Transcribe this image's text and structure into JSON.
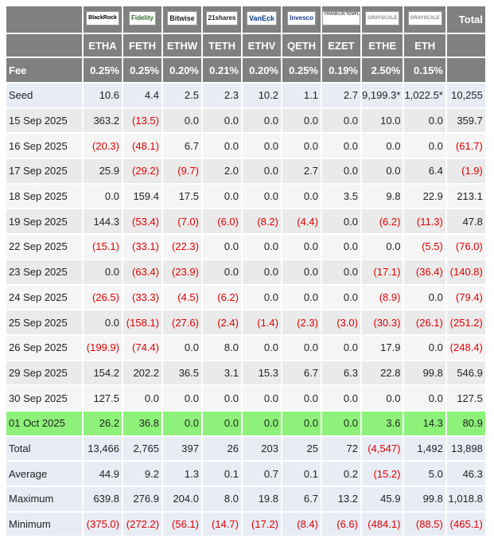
{
  "header": {
    "total_label": "Total",
    "logos": [
      {
        "text": "BlackRock",
        "icon": "blackrock-logo",
        "cls": "blackrock"
      },
      {
        "text": "Fidelity",
        "icon": "fidelity-logo",
        "cls": "fidelity"
      },
      {
        "text": "Bitwise",
        "icon": "bitwise-logo",
        "cls": "bitwise"
      },
      {
        "text": "21shares",
        "icon": "21shares-logo",
        "cls": "shares21"
      },
      {
        "text": "VanEck",
        "icon": "vaneck-logo",
        "cls": "vaneck"
      },
      {
        "text": "Invesco",
        "icon": "invesco-logo",
        "cls": "invesco"
      },
      {
        "text": "FRANKLIN TEMPLETON",
        "icon": "franklin-templeton-logo",
        "cls": "franklin"
      },
      {
        "text": "GRAYSCALE",
        "icon": "grayscale-logo",
        "cls": "grayscale"
      },
      {
        "text": "GRAYSCALE",
        "icon": "grayscale-logo",
        "cls": "grayscale"
      }
    ],
    "tickers": [
      "ETHA",
      "FETH",
      "ETHW",
      "TETH",
      "ETHV",
      "QETH",
      "EZET",
      "ETHE",
      "ETH"
    ],
    "fee_label": "Fee",
    "fees": [
      "0.25%",
      "0.25%",
      "0.20%",
      "0.21%",
      "0.20%",
      "0.25%",
      "0.19%",
      "2.50%",
      "0.15%"
    ]
  },
  "rows": [
    {
      "label": "Seed",
      "kind": "seed",
      "values": [
        "10.6",
        "4.4",
        "2.5",
        "2.3",
        "10.2",
        "1.1",
        "2.7",
        "9,199.3*",
        "1,022.5*",
        "10,255"
      ]
    },
    {
      "label": "15 Sep 2025",
      "kind": "data",
      "values": [
        "363.2",
        "(13.5)",
        "0.0",
        "0.0",
        "0.0",
        "0.0",
        "0.0",
        "10.0",
        "0.0",
        "359.7"
      ]
    },
    {
      "label": "16 Sep 2025",
      "kind": "data",
      "values": [
        "(20.3)",
        "(48.1)",
        "6.7",
        "0.0",
        "0.0",
        "0.0",
        "0.0",
        "0.0",
        "0.0",
        "(61.7)"
      ]
    },
    {
      "label": "17 Sep 2025",
      "kind": "data",
      "values": [
        "25.9",
        "(29.2)",
        "(9.7)",
        "2.0",
        "0.0",
        "2.7",
        "0.0",
        "0.0",
        "6.4",
        "(1.9)"
      ]
    },
    {
      "label": "18 Sep 2025",
      "kind": "data",
      "values": [
        "0.0",
        "159.4",
        "17.5",
        "0.0",
        "0.0",
        "0.0",
        "3.5",
        "9.8",
        "22.9",
        "213.1"
      ]
    },
    {
      "label": "19 Sep 2025",
      "kind": "data",
      "values": [
        "144.3",
        "(53.4)",
        "(7.0)",
        "(6.0)",
        "(8.2)",
        "(4.4)",
        "0.0",
        "(6.2)",
        "(11.3)",
        "47.8"
      ]
    },
    {
      "label": "22 Sep 2025",
      "kind": "data",
      "values": [
        "(15.1)",
        "(33.1)",
        "(22.3)",
        "0.0",
        "0.0",
        "0.0",
        "0.0",
        "0.0",
        "(5.5)",
        "(76.0)"
      ]
    },
    {
      "label": "23 Sep 2025",
      "kind": "data",
      "values": [
        "0.0",
        "(63.4)",
        "(23.9)",
        "0.0",
        "0.0",
        "0.0",
        "0.0",
        "(17.1)",
        "(36.4)",
        "(140.8)"
      ]
    },
    {
      "label": "24 Sep 2025",
      "kind": "data",
      "values": [
        "(26.5)",
        "(33.3)",
        "(4.5)",
        "(6.2)",
        "0.0",
        "0.0",
        "0.0",
        "(8.9)",
        "0.0",
        "(79.4)"
      ]
    },
    {
      "label": "25 Sep 2025",
      "kind": "data",
      "values": [
        "0.0",
        "(158.1)",
        "(27.6)",
        "(2.4)",
        "(1.4)",
        "(2.3)",
        "(3.0)",
        "(30.3)",
        "(26.1)",
        "(251.2)"
      ]
    },
    {
      "label": "26 Sep 2025",
      "kind": "data",
      "values": [
        "(199.9)",
        "(74.4)",
        "0.0",
        "8.0",
        "0.0",
        "0.0",
        "0.0",
        "17.9",
        "0.0",
        "(248.4)"
      ]
    },
    {
      "label": "29 Sep 2025",
      "kind": "data",
      "values": [
        "154.2",
        "202.2",
        "36.5",
        "3.1",
        "15.3",
        "6.7",
        "6.3",
        "22.8",
        "99.8",
        "546.9"
      ]
    },
    {
      "label": "30 Sep 2025",
      "kind": "data",
      "values": [
        "127.5",
        "0.0",
        "0.0",
        "0.0",
        "0.0",
        "0.0",
        "0.0",
        "0.0",
        "0.0",
        "127.5"
      ]
    },
    {
      "label": "01 Oct 2025",
      "kind": "highlight",
      "values": [
        "26.2",
        "36.8",
        "0.0",
        "0.0",
        "0.0",
        "0.0",
        "0.0",
        "3.6",
        "14.3",
        "80.9"
      ]
    },
    {
      "label": "Total",
      "kind": "stat",
      "values": [
        "13,466",
        "2,765",
        "397",
        "26",
        "203",
        "25",
        "72",
        "(4,547)",
        "1,492",
        "13,898"
      ]
    },
    {
      "label": "Average",
      "kind": "stat",
      "values": [
        "44.9",
        "9.2",
        "1.3",
        "0.1",
        "0.7",
        "0.1",
        "0.2",
        "(15.2)",
        "5.0",
        "46.3"
      ]
    },
    {
      "label": "Maximum",
      "kind": "stat",
      "values": [
        "639.8",
        "276.9",
        "204.0",
        "8.0",
        "19.8",
        "6.7",
        "13.2",
        "45.9",
        "99.8",
        "1,018.8"
      ]
    },
    {
      "label": "Minimum",
      "kind": "stat",
      "values": [
        "(375.0)",
        "(272.2)",
        "(56.1)",
        "(14.7)",
        "(17.2)",
        "(8.4)",
        "(6.6)",
        "(484.1)",
        "(88.5)",
        "(465.1)"
      ]
    }
  ],
  "colors": {
    "header_bg": "#808080",
    "negative": "#e00000",
    "highlight": "#8ef27a",
    "stat_bg": "#e8ecf5"
  }
}
